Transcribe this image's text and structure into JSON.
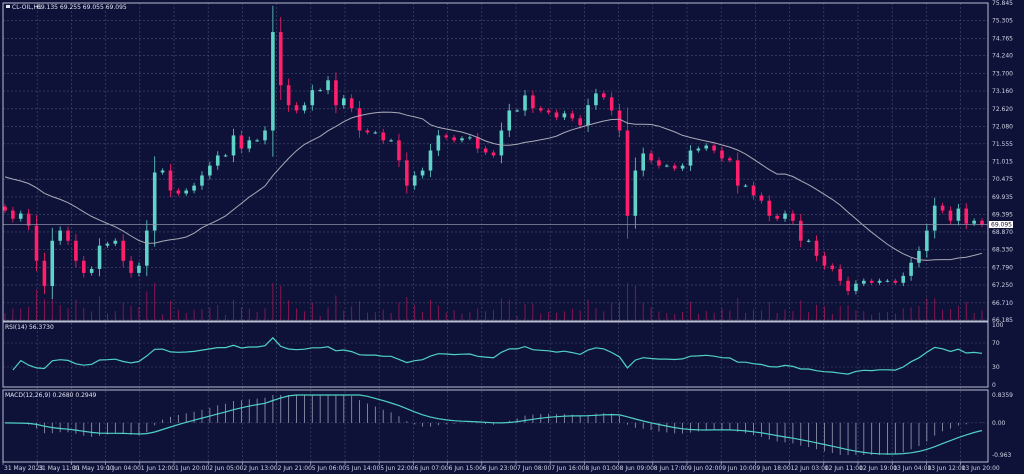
{
  "header": {
    "symbol": "CL-OIL,H1",
    "ohlc": "69.135 69.255 69.055 69.095"
  },
  "colors": {
    "background": "#0f1238",
    "bull": "#5fd3c8",
    "bear": "#ff1f6a",
    "volume": "#c2185b",
    "ma": "#a9a9b8",
    "grid": "#4a4e72",
    "rsi": "#4fd1c5",
    "macd_signal": "#4fd1c5",
    "macd_hist": "#9a9db3"
  },
  "chart_data": [
    {
      "type": "candlestick",
      "title": "CL-OIL,H1",
      "price_axis": {
        "ylim": [
          66.185,
          75.845
        ],
        "ticks": [
          "75.845",
          "75.305",
          "74.765",
          "74.240",
          "73.700",
          "73.160",
          "72.620",
          "72.080",
          "71.555",
          "71.015",
          "70.475",
          "69.935",
          "69.395",
          "68.870",
          "68.330",
          "67.790",
          "67.250",
          "66.710",
          "66.185"
        ]
      },
      "current_price": "69.095",
      "time_axis": [
        "31 May 2023",
        "31 May 11:00",
        "31 May 19:00",
        "1 Jun 04:00",
        "1 Jun 12:00",
        "1 Jun 20:00",
        "2 Jun 05:00",
        "2 Jun 13:00",
        "2 Jun 21:00",
        "5 Jun 06:00",
        "5 Jun 14:00",
        "5 Jun 22:00",
        "6 Jun 07:00",
        "6 Jun 15:00",
        "6 Jun 23:00",
        "7 Jun 08:00",
        "7 Jun 16:00",
        "8 Jun 01:00",
        "8 Jun 09:00",
        "8 Jun 17:00",
        "9 Jun 02:00",
        "9 Jun 10:00",
        "9 Jun 18:00",
        "12 Jun 03:00",
        "12 Jun 11:00",
        "12 Jun 19:00",
        "13 Jun 04:00",
        "13 Jun 12:00",
        "13 Jun 20:00"
      ],
      "closes": [
        69.52,
        69.27,
        69.43,
        69.06,
        67.99,
        67.22,
        68.6,
        68.91,
        68.6,
        67.99,
        67.62,
        67.74,
        68.45,
        68.51,
        68.6,
        67.99,
        67.62,
        67.84,
        68.91,
        70.68,
        70.74,
        70.13,
        70.04,
        70.13,
        70.28,
        70.59,
        70.89,
        71.2,
        71.2,
        71.81,
        71.41,
        71.66,
        71.66,
        71.96,
        74.96,
        73.34,
        72.73,
        72.57,
        72.73,
        73.19,
        73.19,
        73.49,
        72.73,
        72.94,
        72.64,
        71.96,
        71.9,
        71.9,
        71.66,
        71.66,
        71.05,
        70.28,
        70.59,
        70.74,
        71.35,
        71.81,
        71.75,
        71.66,
        71.72,
        71.75,
        71.41,
        71.29,
        71.2,
        71.96,
        72.57,
        72.57,
        73.03,
        72.64,
        72.57,
        72.51,
        72.36,
        72.48,
        72.33,
        72.12,
        72.73,
        73.09,
        72.97,
        72.57,
        71.96,
        69.36,
        70.74,
        71.26,
        71.05,
        70.89,
        70.89,
        70.8,
        70.89,
        71.35,
        71.41,
        71.5,
        71.35,
        71.11,
        71.05,
        70.28,
        70.28,
        69.98,
        69.82,
        69.36,
        69.27,
        69.43,
        69.21,
        68.6,
        68.6,
        68.14,
        67.84,
        67.74,
        67.38,
        67.07,
        67.29,
        67.38,
        67.32,
        67.38,
        67.38,
        67.32,
        67.53,
        67.93,
        68.29,
        68.91,
        69.67,
        69.52,
        69.21,
        69.58,
        69.12,
        69.21,
        69.095
      ],
      "overlay": "moving average"
    },
    {
      "type": "line",
      "title": "RSI(14) 56.3730",
      "ylim": [
        0,
        100
      ],
      "ticks": [
        "100",
        "70",
        "30",
        "0"
      ],
      "levels": [
        70,
        30
      ]
    },
    {
      "type": "bar+line",
      "title": "MACD(12,26,9) 0.2680 0.2949",
      "ylim": [
        -0.963,
        0.8359
      ],
      "ticks": [
        "0.8359",
        "0.00",
        "-0.963"
      ]
    }
  ]
}
